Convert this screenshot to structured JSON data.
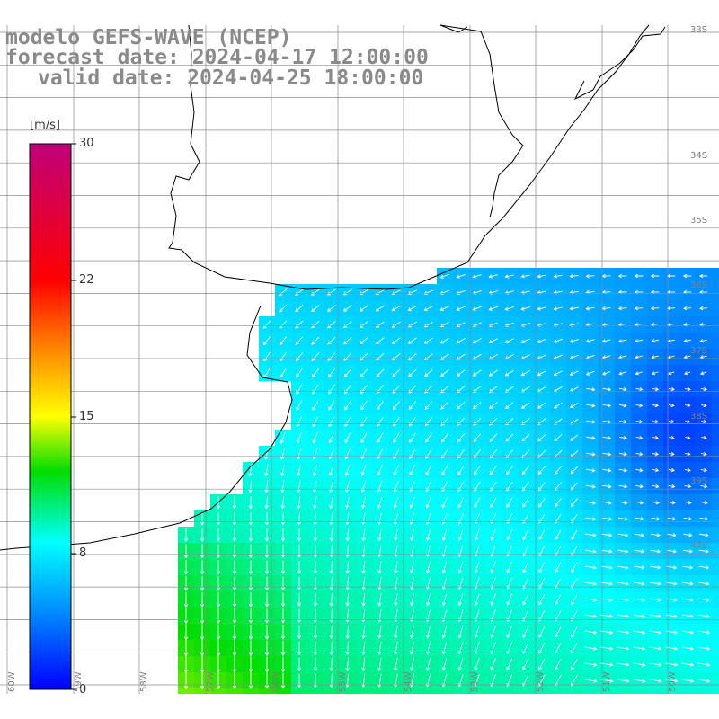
{
  "title": {
    "line1": "modelo GEFS-WAVE (NCEP)",
    "line2": "forecast date: 2024-04-17 12:00:00",
    "line3": "valid date: 2024-04-25 18:00:00"
  },
  "colorbar": {
    "unit": "[m/s]",
    "ticks": [
      "30",
      "22",
      "15",
      "8",
      "0"
    ],
    "min": 0,
    "max": 30
  },
  "axes": {
    "lon_labels": [
      "60W",
      "59W",
      "58W",
      "57W",
      "56W",
      "55W",
      "54W",
      "53W",
      "52W",
      "51W",
      "50W"
    ],
    "lat_labels": [
      "33S",
      "34S",
      "35S",
      "36S",
      "37S",
      "38S",
      "39S",
      "40S"
    ]
  }
}
